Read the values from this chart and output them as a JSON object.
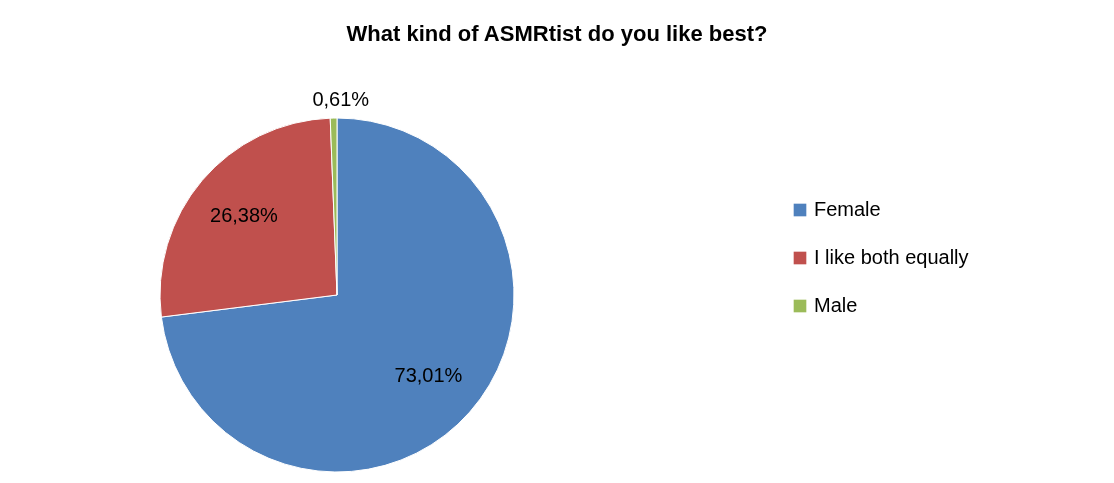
{
  "chart_data": {
    "type": "pie",
    "title": "What kind of ASMRtist do you like best?",
    "categories": [
      "Female",
      "I like both equally",
      "Male"
    ],
    "values": [
      73.01,
      26.38,
      0.61
    ],
    "colors": [
      "#4f81bd",
      "#c0504d",
      "#9bbb59"
    ],
    "value_labels": [
      "73,01%",
      "26,38%",
      "0,61%"
    ],
    "legend": "right"
  }
}
